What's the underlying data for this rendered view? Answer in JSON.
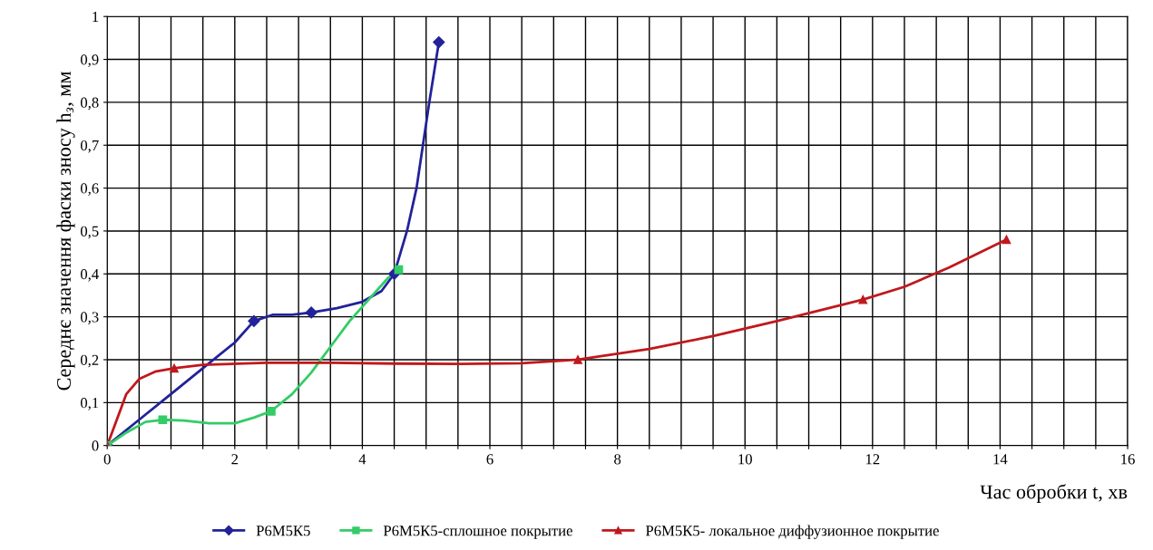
{
  "chart_data": {
    "type": "line",
    "xlabel": "Час обробки t, хв",
    "ylabel": "Середнє значення фаски зносу h$_{з}$, мм",
    "xlim": [
      0,
      16
    ],
    "ylim": [
      0,
      1
    ],
    "xticks": [
      0,
      {
        "value": 0.5,
        "label": null
      },
      {
        "value": 1,
        "label": null
      },
      {
        "value": 1.5,
        "label": null
      },
      2,
      {
        "value": 2.5,
        "label": null
      },
      {
        "value": 3,
        "label": null
      },
      {
        "value": 3.5,
        "label": null
      },
      4,
      {
        "value": 4.5,
        "label": null
      },
      {
        "value": 5,
        "label": null
      },
      {
        "value": 5.5,
        "label": null
      },
      6,
      {
        "value": 6.5,
        "label": null
      },
      {
        "value": 7,
        "label": null
      },
      {
        "value": 7.5,
        "label": null
      },
      8,
      {
        "value": 8.5,
        "label": null
      },
      {
        "value": 9,
        "label": null
      },
      {
        "value": 9.5,
        "label": null
      },
      10,
      {
        "value": 10.5,
        "label": null
      },
      {
        "value": 11,
        "label": null
      },
      {
        "value": 11.5,
        "label": null
      },
      12,
      {
        "value": 12.5,
        "label": null
      },
      {
        "value": 13,
        "label": null
      },
      {
        "value": 13.5,
        "label": null
      },
      14,
      {
        "value": 14.5,
        "label": null
      },
      {
        "value": 15,
        "label": null
      },
      {
        "value": 15.5,
        "label": null
      },
      16
    ],
    "yticks": [
      0,
      {
        "value": 0.1,
        "label": "0,1"
      },
      {
        "value": 0.2,
        "label": "0,2"
      },
      {
        "value": 0.3,
        "label": "0,3"
      },
      {
        "value": 0.4,
        "label": "0,4"
      },
      {
        "value": 0.5,
        "label": "0,5"
      },
      {
        "value": 0.6,
        "label": "0,6"
      },
      {
        "value": 0.7,
        "label": "0,7"
      },
      {
        "value": 0.8,
        "label": "0,8"
      },
      {
        "value": 0.9,
        "label": "0,9"
      },
      1
    ],
    "grid": true,
    "legend": "bottom",
    "series": [
      {
        "name": "Р6М5К5",
        "color": "#22229a",
        "marker": "none",
        "x": [
          0,
          0.5,
          1,
          1.5,
          2,
          2.3,
          2.6,
          2.9,
          3.2,
          3.6,
          4.0,
          4.3,
          4.5,
          4.7,
          4.85,
          4.95,
          5.05,
          5.2
        ],
        "values": [
          0,
          0.06,
          0.12,
          0.18,
          0.24,
          0.29,
          0.305,
          0.305,
          0.31,
          0.32,
          0.335,
          0.36,
          0.4,
          0.5,
          0.6,
          0.7,
          0.8,
          0.94
        ]
      },
      {
        "type": "scatter",
        "color": "#22229a",
        "marker": "diamond",
        "x": [
          0,
          2.3,
          3.2,
          4.5,
          5.2
        ],
        "values": [
          0,
          0.29,
          0.31,
          0.4,
          0.94
        ]
      },
      {
        "name": "Р6М5К5-сплошное покрытие",
        "color": "#33cc66",
        "marker": "none",
        "x": [
          0,
          0.3,
          0.6,
          0.87,
          1.2,
          1.6,
          2.0,
          2.3,
          2.57,
          2.9,
          3.2,
          3.5,
          3.8,
          4.1,
          4.4,
          4.57
        ],
        "values": [
          0,
          0.03,
          0.055,
          0.06,
          0.058,
          0.052,
          0.052,
          0.065,
          0.08,
          0.12,
          0.17,
          0.23,
          0.29,
          0.34,
          0.39,
          0.41
        ]
      },
      {
        "type": "scatter",
        "color": "#33cc66",
        "marker": "square",
        "x": [
          0,
          0.87,
          2.57,
          4.57
        ],
        "values": [
          0,
          0.06,
          0.08,
          0.41
        ]
      },
      {
        "name": "Р6М5К5- локальное диффузионное покрытие",
        "color": "#c0181c",
        "marker": "none",
        "x": [
          0,
          0.15,
          0.3,
          0.5,
          0.75,
          1.05,
          1.5,
          2.5,
          3.5,
          4.5,
          5.5,
          6.5,
          7.38,
          8.5,
          9.5,
          10.5,
          11.85,
          12.5,
          13.2,
          14.1
        ],
        "values": [
          0,
          0.06,
          0.12,
          0.155,
          0.172,
          0.18,
          0.188,
          0.193,
          0.193,
          0.191,
          0.19,
          0.192,
          0.2,
          0.225,
          0.255,
          0.29,
          0.34,
          0.37,
          0.415,
          0.48
        ]
      },
      {
        "type": "scatter",
        "color": "#c0181c",
        "marker": "triangle",
        "x": [
          0,
          1.05,
          7.38,
          11.85,
          14.1
        ],
        "values": [
          0,
          0.18,
          0.2,
          0.34,
          0.48
        ]
      }
    ]
  }
}
